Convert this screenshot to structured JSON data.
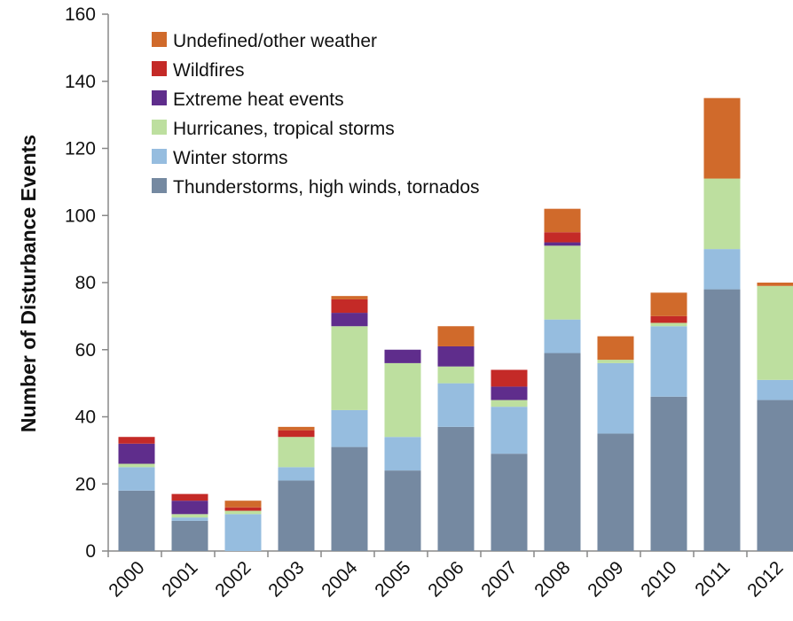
{
  "chart_data": {
    "type": "bar",
    "stacked": true,
    "title": "",
    "xlabel": "",
    "ylabel": "Number of Disturbance Events",
    "ylim": [
      0,
      160
    ],
    "yticks": [
      "0",
      "20",
      "40",
      "60",
      "80",
      "100",
      "120",
      "140",
      "160"
    ],
    "grid": false,
    "legend_position": "top-left",
    "categories": [
      "2000",
      "2001",
      "2002",
      "2003",
      "2004",
      "2005",
      "2006",
      "2007",
      "2008",
      "2009",
      "2010",
      "2011",
      "2012"
    ],
    "series": [
      {
        "name": "Thunderstorms, high winds, tornados",
        "color": "#7589a1",
        "values": [
          18,
          9,
          0,
          21,
          31,
          24,
          37,
          29,
          59,
          35,
          46,
          78,
          45
        ]
      },
      {
        "name": "Winter storms",
        "color": "#96bddf",
        "values": [
          7,
          1,
          11,
          4,
          11,
          10,
          13,
          14,
          10,
          21,
          21,
          12,
          6
        ]
      },
      {
        "name": "Hurricanes, tropical storms",
        "color": "#bddf9f",
        "values": [
          1,
          1,
          1,
          9,
          25,
          22,
          5,
          2,
          22,
          1,
          1,
          21,
          28
        ]
      },
      {
        "name": "Extreme heat events",
        "color": "#5f2d8c",
        "values": [
          6,
          4,
          0,
          0,
          4,
          4,
          6,
          4,
          1,
          0,
          0,
          0,
          0
        ]
      },
      {
        "name": "Wildfires",
        "color": "#c42a27",
        "values": [
          2,
          2,
          1,
          2,
          4,
          0,
          0,
          5,
          3,
          0,
          2,
          0,
          0
        ]
      },
      {
        "name": "Undefined/other weather",
        "color": "#d06a2b",
        "values": [
          0,
          0,
          2,
          1,
          1,
          0,
          6,
          0,
          7,
          7,
          7,
          24,
          1
        ]
      }
    ]
  }
}
